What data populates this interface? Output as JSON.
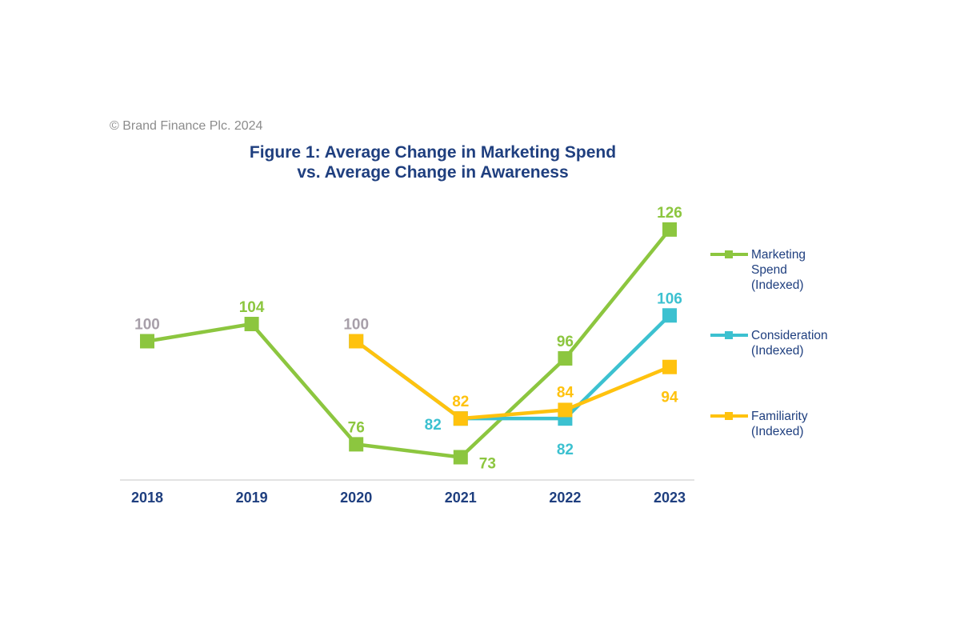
{
  "copyright": "© Brand Finance Plc. 2024",
  "colors": {
    "marketing": "#8cc63f",
    "consideration": "#3cc1d0",
    "familiarity": "#ffc20e",
    "muted": "#a79fa9",
    "text": "#1f3f7f",
    "axis": "#d9d9d9"
  },
  "chart_data": {
    "type": "line",
    "title_lines": [
      "Figure 1: Average Change in Marketing Spend",
      "vs. Average Change in Awareness"
    ],
    "categories": [
      "2018",
      "2019",
      "2020",
      "2021",
      "2022",
      "2023"
    ],
    "series": [
      {
        "name_lines": [
          "Marketing",
          "Spend",
          "(Indexed)"
        ],
        "key": "marketing",
        "values": [
          100,
          104,
          76,
          73,
          96,
          126
        ],
        "labels": [
          "100",
          "104",
          "76",
          "73",
          "96",
          "126"
        ]
      },
      {
        "name_lines": [
          "Consideration",
          "(Indexed)"
        ],
        "key": "consideration",
        "values": [
          null,
          null,
          100,
          82,
          82,
          106
        ],
        "labels": [
          null,
          null,
          null,
          "82",
          "82",
          "106"
        ]
      },
      {
        "name_lines": [
          "Familiarity",
          "(Indexed)"
        ],
        "key": "familiarity",
        "values": [
          null,
          null,
          100,
          82,
          84,
          94
        ],
        "labels": [
          null,
          null,
          "100",
          "82",
          "84",
          "94"
        ]
      }
    ],
    "grid": false,
    "legend_position": "right"
  }
}
